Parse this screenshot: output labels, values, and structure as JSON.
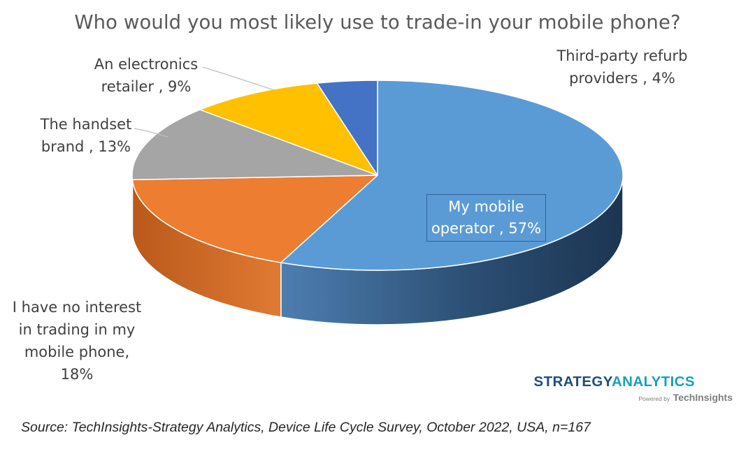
{
  "chart_data": {
    "type": "pie",
    "title": "Who would you most likely use to trade-in your mobile phone?",
    "slices": [
      {
        "label": "My mobile operator",
        "value": 57,
        "data_label": "My mobile operator , 57%",
        "color": "#5b9bd5",
        "side_color": "#2f5f8c"
      },
      {
        "label": "I have no interest in trading in my mobile phone",
        "value": 18,
        "data_label": "I have no interest in trading in my mobile phone, 18%",
        "color": "#ed7d31",
        "side_color": "#b85a1e"
      },
      {
        "label": "The handset brand",
        "value": 13,
        "data_label": "The handset brand , 13%",
        "color": "#a5a5a5",
        "side_color": "#7a7a7a"
      },
      {
        "label": "An electronics retailer",
        "value": 9,
        "data_label": "An electronics retailer , 9%",
        "color": "#ffc000",
        "side_color": "#c99700"
      },
      {
        "label": "Third-party refurb providers",
        "value": 4,
        "data_label": "Third-party refurb providers , 4%",
        "color": "#4472c4",
        "side_color": "#2c4f8f"
      }
    ]
  },
  "labels": {
    "operator": [
      "My mobile",
      "operator , 57%"
    ],
    "nointerest": [
      "I have no interest",
      "in trading in my",
      "mobile phone,",
      "18%"
    ],
    "handset": [
      "The handset",
      "brand , 13%"
    ],
    "retailer": [
      "An electronics",
      "retailer , 9%"
    ],
    "refurb": [
      "Third-party refurb",
      "providers , 4%"
    ]
  },
  "logo": {
    "word1": "STRATEGY",
    "word2": "ANALYTICS",
    "powered": "Powered by",
    "company": "TechInsights"
  },
  "source": "Source: TechInsights-Strategy Analytics, Device Life Cycle Survey, October 2022, USA, n=167"
}
